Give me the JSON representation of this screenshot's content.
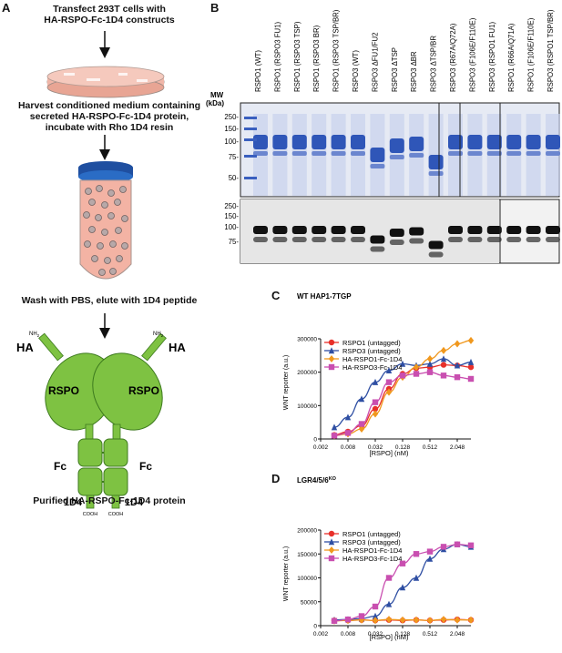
{
  "panels": {
    "a": {
      "letter": "A",
      "step1": [
        "Transfect 293T cells with",
        "HA-RSPO-Fc-1D4 constructs"
      ],
      "step2": [
        "Harvest conditioned medium containing",
        "secreted HA-RSPO-Fc-1D4 protein,",
        "incubate with Rho 1D4 resin"
      ],
      "step3": "Wash with PBS, elute with 1D4 peptide",
      "diagram": {
        "nh2_left": "NH",
        "nh2_right": "NH",
        "sub2": "2",
        "ha_left": "HA",
        "ha_right": "HA",
        "rspo_left": "RSPO",
        "rspo_right": "RSPO",
        "fc_left": "Fc",
        "fc_right": "Fc",
        "d4_left": "1D4",
        "d4_right": "1D4",
        "cooh_left": "COOH",
        "cooh_right": "COOH"
      },
      "caption": "Purified HA-RSPO-Fc-1D4 protein"
    },
    "b": {
      "letter": "B",
      "mw_title": [
        "MW",
        "(kDa)"
      ],
      "lanes": [
        "RSPO1 (WT)",
        "RSPO1 (RSPO3 FU1)",
        "RSPO1 (RSPO3 TSP)",
        "RSPO1 (RSPO3 BR)",
        "RSPO1 (RSPO3 TSP/BR)",
        "RSPO3 (WT)",
        "RSPO3 ΔFU1/FU2",
        "RSPO3 ΔTSP",
        "RSPO3 ΔBR",
        "RSPO3 ΔTSP/BR",
        "RSPO3 (R67A/Q72A)",
        "RSPO3 (F106E/F110E)",
        "RSPO3 (RSPO1 FU1)",
        "RSPO1 (R66A/Q71A)",
        "RSPO1 (F106E/F110E)",
        "RSPO3 (RSPO1 TSP/BR)"
      ],
      "mw_top": [
        "250-",
        "150-",
        "100-",
        "75-",
        "50-"
      ],
      "mw_bottom": [
        "250-",
        "150-",
        "100-",
        "75-"
      ]
    },
    "c": {
      "letter": "C",
      "title": "WT HAP1-7TGP",
      "ylabel": "WNT reporter (a.u.)",
      "xlabel": "[RSPO] (nM)",
      "yticks": [
        "0",
        "100000",
        "200000",
        "300000"
      ],
      "xticks": [
        "0.002",
        "0.008",
        "0.032",
        "0.128",
        "0.512",
        "2.048"
      ]
    },
    "d": {
      "letter": "D",
      "title": "LGR4/5/6",
      "title_sup": "KO",
      "ylabel": "WNT reporter (a.u.)",
      "xlabel": "[RSPO] (nM)",
      "yticks": [
        "0",
        "50000",
        "100000",
        "150000",
        "200000"
      ],
      "xticks": [
        "0.002",
        "0.008",
        "0.032",
        "0.128",
        "0.512",
        "2.048"
      ]
    }
  },
  "chart_data": [
    {
      "type": "scatter",
      "title": "WT HAP1-7TGP",
      "xlabel": "[RSPO] (nM)",
      "ylabel": "WNT reporter (a.u.)",
      "xscale": "log",
      "xlim": [
        0.002,
        4.096
      ],
      "ylim": [
        0,
        300000
      ],
      "legend_position": "top-left",
      "series": [
        {
          "name": "RSPO1 (untagged)",
          "color": "#e8302a",
          "marker": "circle",
          "x": [
            0.004,
            0.008,
            0.016,
            0.032,
            0.064,
            0.128,
            0.256,
            0.512,
            1.024,
            2.048,
            4.096
          ],
          "y": [
            12000,
            22000,
            40000,
            90000,
            150000,
            195000,
            212000,
            215000,
            222000,
            220000,
            215000
          ]
        },
        {
          "name": "RSPO3 (untagged)",
          "color": "#2f4fa3",
          "marker": "triangle",
          "x": [
            0.004,
            0.008,
            0.016,
            0.032,
            0.064,
            0.128,
            0.256,
            0.512,
            1.024,
            2.048,
            4.096
          ],
          "y": [
            35000,
            65000,
            120000,
            170000,
            205000,
            225000,
            220000,
            225000,
            240000,
            220000,
            230000
          ]
        },
        {
          "name": "HA-RSPO1-Fc-1D4",
          "color": "#f0981e",
          "marker": "diamond",
          "x": [
            0.004,
            0.008,
            0.016,
            0.032,
            0.064,
            0.128,
            0.256,
            0.512,
            1.024,
            2.048,
            4.096
          ],
          "y": [
            10000,
            15000,
            30000,
            75000,
            140000,
            185000,
            215000,
            240000,
            265000,
            285000,
            295000
          ]
        },
        {
          "name": "HA-RSPO3-Fc-1D4",
          "color": "#c94fb0",
          "marker": "square",
          "x": [
            0.004,
            0.008,
            0.016,
            0.032,
            0.064,
            0.128,
            0.256,
            0.512,
            1.024,
            2.048,
            4.096
          ],
          "y": [
            10000,
            18000,
            45000,
            110000,
            170000,
            190000,
            195000,
            200000,
            190000,
            185000,
            180000
          ]
        }
      ]
    },
    {
      "type": "scatter",
      "title": "LGR4/5/6 KO",
      "xlabel": "[RSPO] (nM)",
      "ylabel": "WNT reporter (a.u.)",
      "xscale": "log",
      "xlim": [
        0.002,
        4.096
      ],
      "ylim": [
        0,
        200000
      ],
      "legend_position": "top-left",
      "series": [
        {
          "name": "RSPO1 (untagged)",
          "color": "#e8302a",
          "marker": "circle",
          "x": [
            0.004,
            0.008,
            0.016,
            0.032,
            0.064,
            0.128,
            0.256,
            0.512,
            1.024,
            2.048,
            4.096
          ],
          "y": [
            11000,
            11000,
            12000,
            11000,
            12000,
            11000,
            12000,
            11000,
            12000,
            13000,
            12000
          ]
        },
        {
          "name": "RSPO3 (untagged)",
          "color": "#2f4fa3",
          "marker": "triangle",
          "x": [
            0.004,
            0.008,
            0.016,
            0.032,
            0.064,
            0.128,
            0.256,
            0.512,
            1.024,
            2.048,
            4.096
          ],
          "y": [
            12000,
            13000,
            15000,
            20000,
            45000,
            80000,
            100000,
            140000,
            160000,
            170000,
            165000
          ]
        },
        {
          "name": "HA-RSPO1-Fc-1D4",
          "color": "#f0981e",
          "marker": "diamond",
          "x": [
            0.004,
            0.008,
            0.016,
            0.032,
            0.064,
            0.128,
            0.256,
            0.512,
            1.024,
            2.048,
            4.096
          ],
          "y": [
            10000,
            11000,
            12000,
            11000,
            13000,
            12000,
            12000,
            11000,
            13000,
            12000,
            12000
          ]
        },
        {
          "name": "HA-RSPO3-Fc-1D4",
          "color": "#c94fb0",
          "marker": "square",
          "x": [
            0.004,
            0.008,
            0.016,
            0.032,
            0.064,
            0.128,
            0.256,
            0.512,
            1.024,
            2.048,
            4.096
          ],
          "y": [
            10000,
            13000,
            20000,
            40000,
            100000,
            130000,
            150000,
            155000,
            165000,
            170000,
            168000
          ]
        }
      ]
    }
  ]
}
